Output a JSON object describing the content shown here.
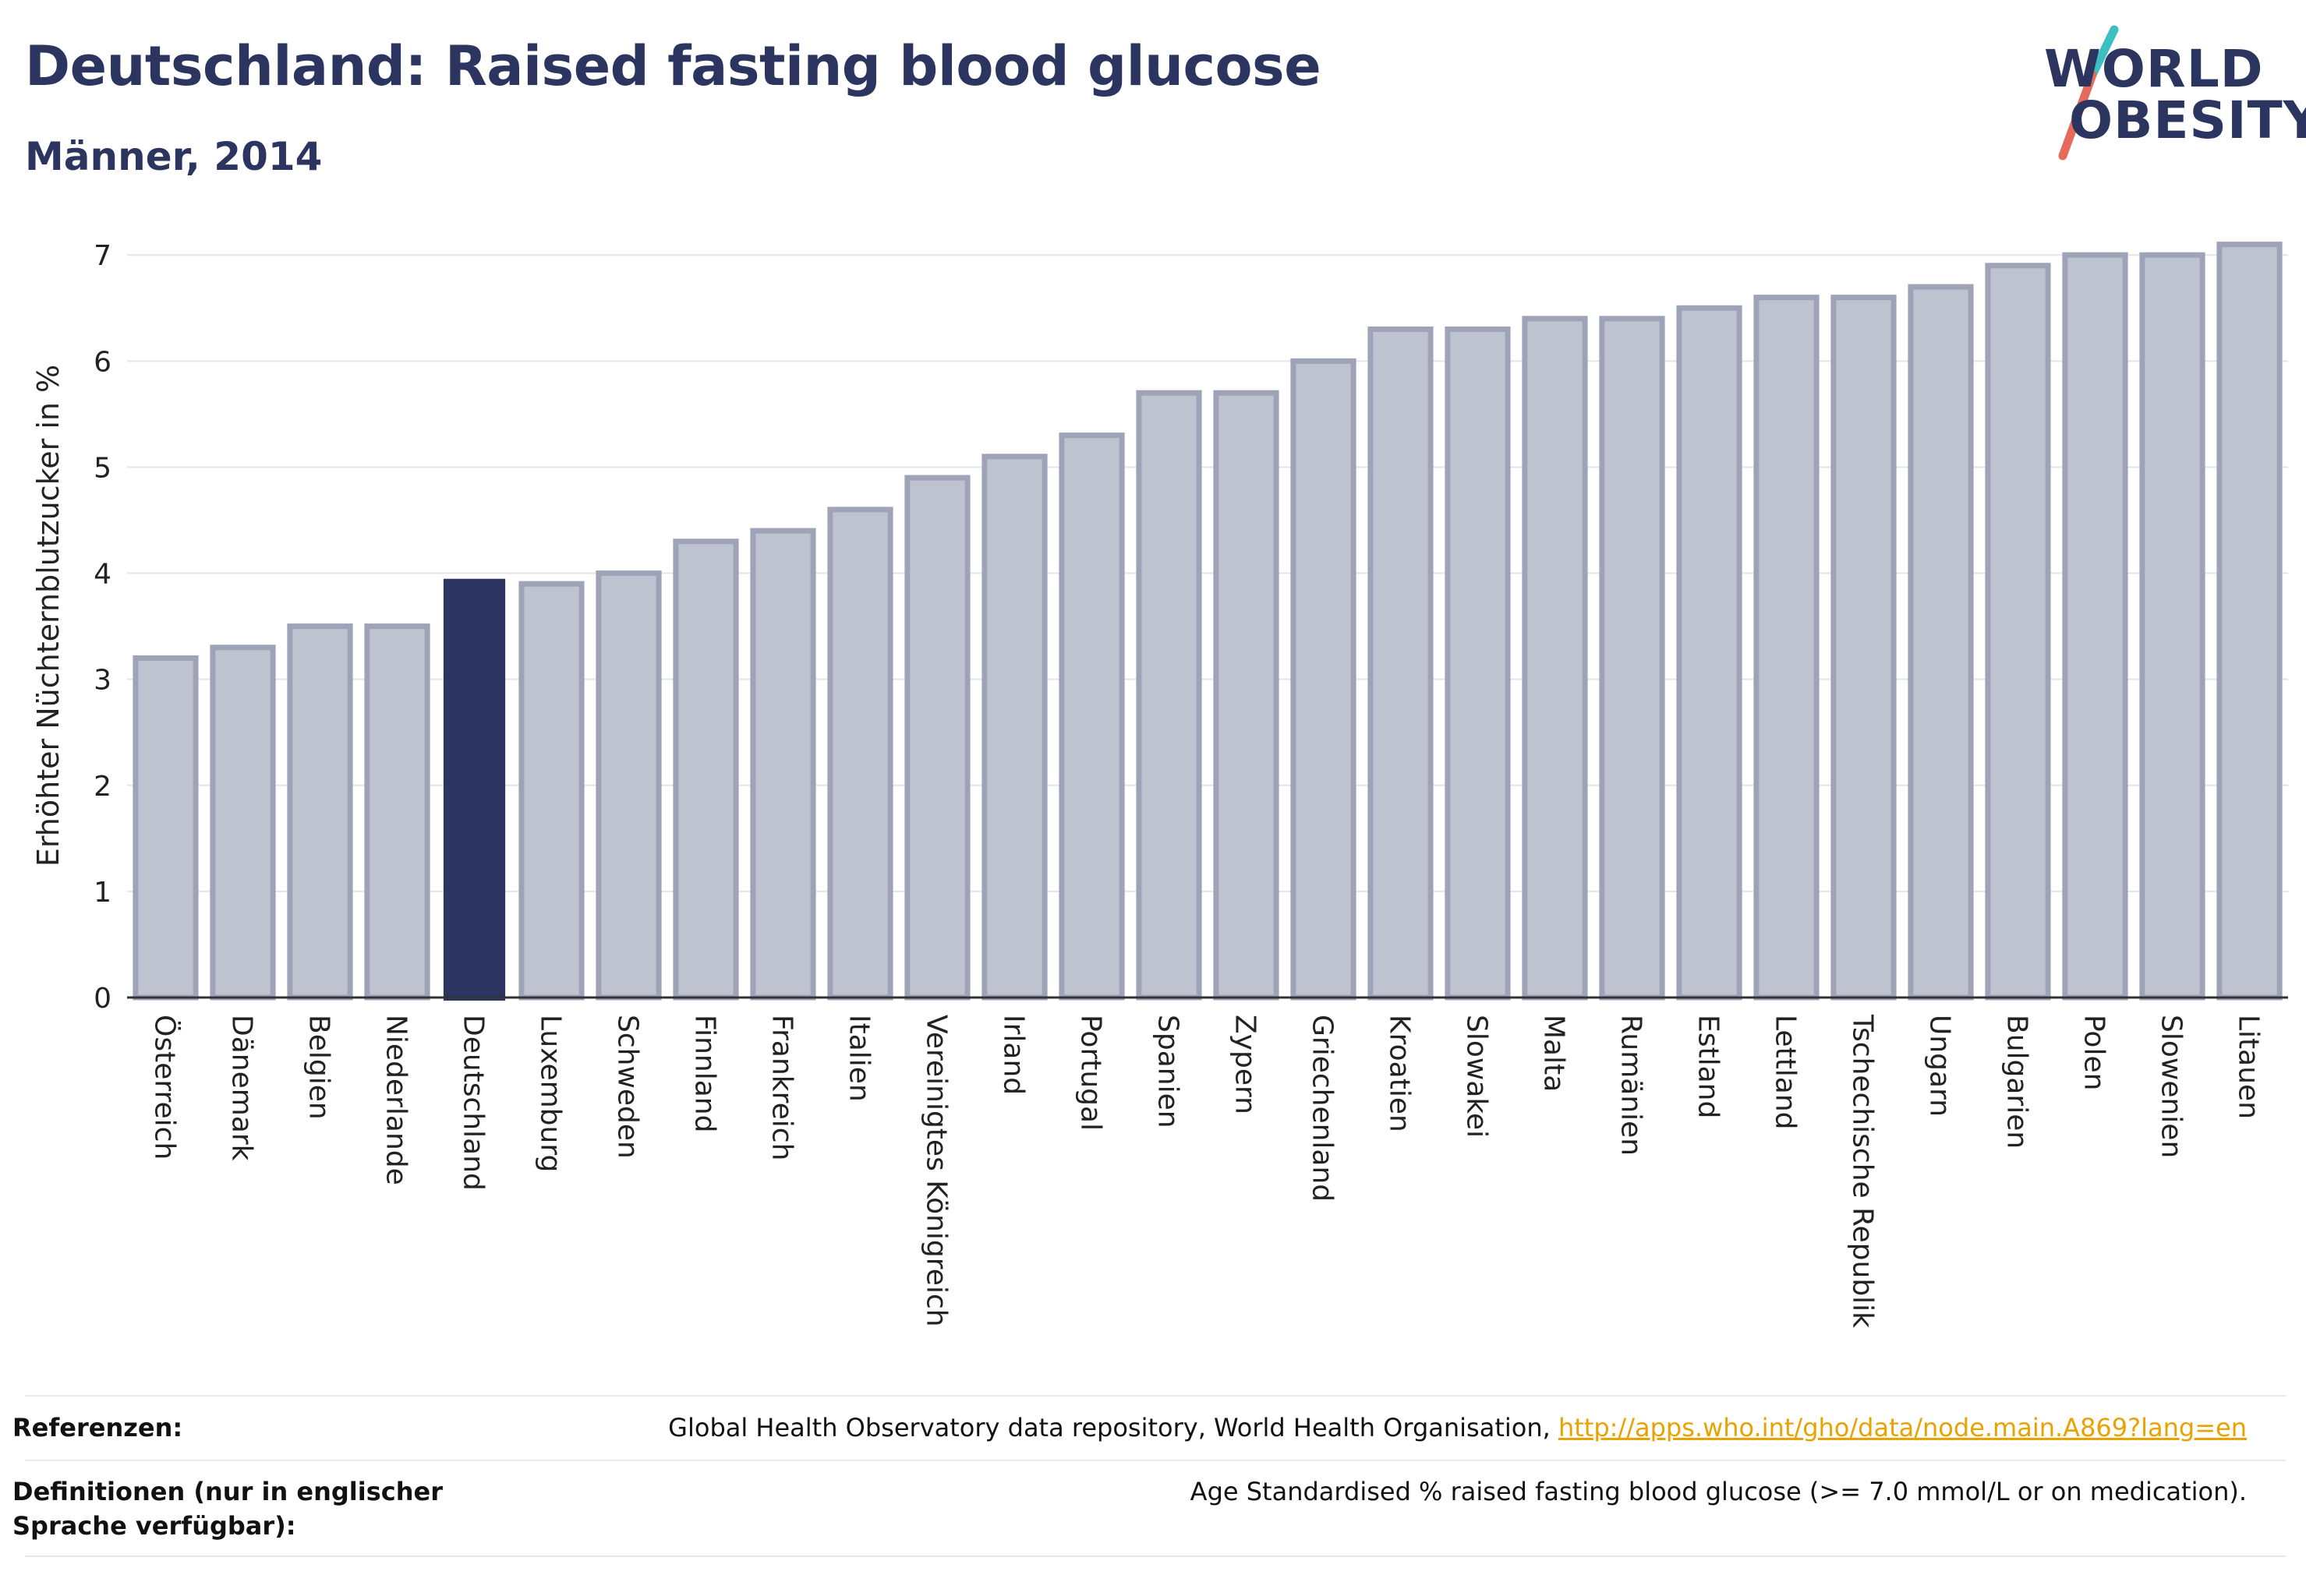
{
  "header": {
    "title": "Deutschland: Raised fasting blood glucose",
    "subtitle": "Männer, 2014"
  },
  "logo": {
    "line1": "WORLD",
    "line2": "OBESITY",
    "slash_color_top": "#3cbfc3",
    "slash_color_bottom": "#e66a5b"
  },
  "colors": {
    "bar_fill": "#bfc2cf",
    "bar_stroke": "#9ea3b8",
    "highlight": "#2b355f",
    "grid": "#e3e4ea"
  },
  "chart_data": {
    "type": "bar",
    "ylabel": "Erhöhter Nüchternblutzucker in %",
    "ylim": [
      0,
      7.2
    ],
    "yticks": [
      0,
      1,
      2,
      3,
      4,
      5,
      6,
      7
    ],
    "grid": true,
    "highlight": "Deutschland",
    "categories": [
      "Österreich",
      "Dänemark",
      "Belgien",
      "Niederlande",
      "Deutschland",
      "Luxemburg",
      "Schweden",
      "Finnland",
      "Frankreich",
      "Italien",
      "Vereinigtes Königreich",
      "Irland",
      "Portugal",
      "Spanien",
      "Zypern",
      "Griechenland",
      "Kroatien",
      "Slowakei",
      "Malta",
      "Rumänien",
      "Estland",
      "Lettland",
      "Tschechische Republik",
      "Ungarn",
      "Bulgarien",
      "Polen",
      "Slowenien",
      "Litauen"
    ],
    "values": [
      3.2,
      3.3,
      3.5,
      3.5,
      3.94,
      3.9,
      4.0,
      4.3,
      4.4,
      4.6,
      4.9,
      5.1,
      5.3,
      5.7,
      5.7,
      6.0,
      6.3,
      6.3,
      6.4,
      6.4,
      6.5,
      6.6,
      6.6,
      6.7,
      6.9,
      7.0,
      7.0,
      7.1
    ]
  },
  "footer": {
    "references_label": "Referenzen:",
    "references_text": "Global Health Observatory data repository, World Health Organisation, ",
    "references_link": "http://apps.who.int/gho/data/node.main.A869?lang=en",
    "definitions_label": "Definitionen (nur in englischer Sprache verfügbar):",
    "definitions_text": "Age Standardised % raised fasting blood glucose (>= 7.0 mmol/L or on medication)."
  }
}
